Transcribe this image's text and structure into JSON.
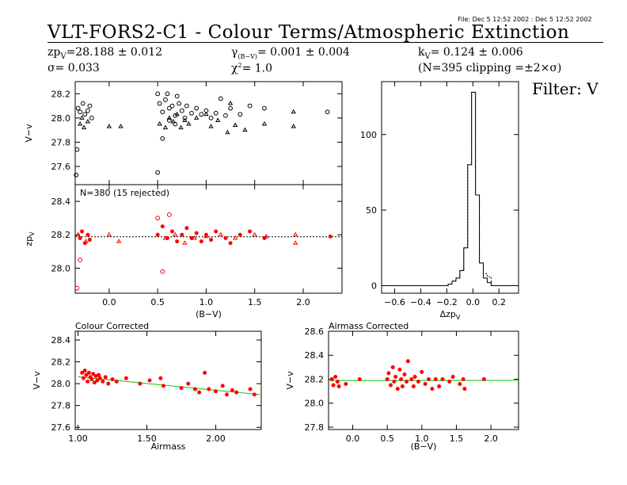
{
  "file_stamp": "File: Dec  5 12:52 2002 : Dec  5 12:52 2002",
  "title": "VLT-FORS2-C1  -  Colour Terms/Atmospheric Extinction",
  "header": {
    "zp_label": "zp",
    "zp_sub": "V",
    "zp_value": "=28.188 ± 0.012",
    "sigma": "σ= 0.033",
    "gamma_sym": "γ",
    "gamma_sub": "(B−V)",
    "gamma_value": "= 0.001 ± 0.004",
    "chi_sym": "χ",
    "chi_sup": "2",
    "chi_value": "=  1.0",
    "k_sym": "k",
    "k_sub": "V",
    "k_value": "= 0.124 ± 0.006",
    "clipping": "(N=395 clipping =±2×σ)"
  },
  "filter_label": "Filter: V",
  "colors": {
    "axis": "#000000",
    "points": "#ff0000",
    "fit": "#00cc00",
    "dotted": "#000000"
  },
  "chart_data": [
    {
      "id": "top-left",
      "type": "scatter",
      "title": "",
      "xlabel": "",
      "ylabel": "V−v",
      "xlim": [
        -0.35,
        2.4
      ],
      "ylim": [
        27.45,
        28.3
      ],
      "yticks": [
        27.6,
        27.8,
        28.0,
        28.2
      ],
      "yticklabels": [
        "27.6",
        "27.8",
        "28.0",
        "28.2"
      ],
      "series": [
        {
          "marker": "circle",
          "color": "#000000",
          "points": [
            [
              -0.32,
              28.08
            ],
            [
              -0.3,
              28.05
            ],
            [
              -0.27,
              28.12
            ],
            [
              -0.25,
              28.03
            ],
            [
              -0.22,
              28.06
            ],
            [
              -0.2,
              28.1
            ],
            [
              -0.18,
              28.0
            ],
            [
              -0.33,
              27.74
            ],
            [
              -0.34,
              27.53
            ],
            [
              0.5,
              28.2
            ],
            [
              0.52,
              28.12
            ],
            [
              0.55,
              28.05
            ],
            [
              0.58,
              28.15
            ],
            [
              0.6,
              28.2
            ],
            [
              0.62,
              28.08
            ],
            [
              0.65,
              28.1
            ],
            [
              0.68,
              28.02
            ],
            [
              0.7,
              28.18
            ],
            [
              0.72,
              28.12
            ],
            [
              0.75,
              28.06
            ],
            [
              0.78,
              28.0
            ],
            [
              0.8,
              28.1
            ],
            [
              0.85,
              28.04
            ],
            [
              0.9,
              28.08
            ],
            [
              0.95,
              28.03
            ],
            [
              1.0,
              28.06
            ],
            [
              1.05,
              28.0
            ],
            [
              1.1,
              28.04
            ],
            [
              1.15,
              28.16
            ],
            [
              1.2,
              28.02
            ],
            [
              1.25,
              28.08
            ],
            [
              1.35,
              28.03
            ],
            [
              1.45,
              28.1
            ],
            [
              1.6,
              28.08
            ],
            [
              2.25,
              28.05
            ],
            [
              0.55,
              27.83
            ],
            [
              0.5,
              27.55
            ],
            [
              0.62,
              27.98
            ],
            [
              0.68,
              27.95
            ]
          ]
        },
        {
          "marker": "triangle",
          "color": "#000000",
          "points": [
            [
              -0.3,
              27.95
            ],
            [
              -0.26,
              27.92
            ],
            [
              -0.22,
              27.97
            ],
            [
              -0.28,
              28.0
            ],
            [
              0.0,
              27.93
            ],
            [
              0.12,
              27.93
            ],
            [
              0.52,
              27.95
            ],
            [
              0.58,
              27.92
            ],
            [
              0.62,
              28.0
            ],
            [
              0.66,
              27.97
            ],
            [
              0.7,
              28.03
            ],
            [
              0.74,
              27.92
            ],
            [
              0.78,
              27.98
            ],
            [
              0.82,
              27.95
            ],
            [
              0.9,
              28.0
            ],
            [
              1.0,
              28.03
            ],
            [
              1.05,
              27.93
            ],
            [
              1.12,
              27.98
            ],
            [
              1.22,
              27.88
            ],
            [
              1.3,
              27.94
            ],
            [
              1.4,
              27.9
            ],
            [
              1.6,
              27.95
            ],
            [
              1.9,
              27.93
            ],
            [
              1.9,
              28.05
            ],
            [
              1.25,
              28.12
            ]
          ]
        }
      ]
    },
    {
      "id": "bottom-left",
      "type": "scatter",
      "title": "",
      "annotation": "N=380 (15 rejected)",
      "xlabel": "(B−V)",
      "ylabel": "zp",
      "ylabel_sub": "V",
      "xlim": [
        -0.35,
        2.4
      ],
      "ylim": [
        27.85,
        28.5
      ],
      "xticks": [
        0.0,
        0.5,
        1.0,
        1.5,
        2.0
      ],
      "xticklabels": [
        "0.0",
        "0.5",
        "1.0",
        "1.5",
        "2.0"
      ],
      "yticks": [
        28.0,
        28.2,
        28.4
      ],
      "yticklabels": [
        "28.0",
        "28.2",
        "28.4"
      ],
      "reference_line": 28.188,
      "series": [
        {
          "marker": "circle",
          "color": "#ff0000",
          "points": [
            [
              -0.3,
              28.18
            ],
            [
              -0.28,
              28.22
            ],
            [
              -0.25,
              28.15
            ],
            [
              -0.22,
              28.2
            ],
            [
              -0.2,
              28.17
            ],
            [
              -0.3,
              28.05
            ],
            [
              -0.33,
              27.88
            ],
            [
              0.5,
              28.2
            ],
            [
              0.55,
              28.25
            ],
            [
              0.6,
              28.18
            ],
            [
              0.65,
              28.22
            ],
            [
              0.7,
              28.16
            ],
            [
              0.75,
              28.2
            ],
            [
              0.8,
              28.24
            ],
            [
              0.85,
              28.18
            ],
            [
              0.9,
              28.21
            ],
            [
              0.95,
              28.16
            ],
            [
              1.0,
              28.2
            ],
            [
              1.05,
              28.17
            ],
            [
              1.1,
              28.22
            ],
            [
              1.2,
              28.18
            ],
            [
              1.25,
              28.15
            ],
            [
              1.35,
              28.2
            ],
            [
              1.45,
              28.22
            ],
            [
              1.6,
              28.18
            ],
            [
              2.28,
              28.19
            ],
            [
              0.5,
              28.3
            ],
            [
              0.55,
              27.98
            ],
            [
              0.62,
              28.32
            ]
          ]
        },
        {
          "marker": "triangle",
          "color": "#ff0000",
          "points": [
            [
              -0.32,
              28.2
            ],
            [
              -0.24,
              28.16
            ],
            [
              0.0,
              28.2
            ],
            [
              0.1,
              28.16
            ],
            [
              0.58,
              28.18
            ],
            [
              0.68,
              28.2
            ],
            [
              0.78,
              28.15
            ],
            [
              0.88,
              28.18
            ],
            [
              1.0,
              28.19
            ],
            [
              1.15,
              28.2
            ],
            [
              1.3,
              28.18
            ],
            [
              1.5,
              28.2
            ],
            [
              1.62,
              28.19
            ],
            [
              1.92,
              28.2
            ],
            [
              1.92,
              28.15
            ]
          ]
        }
      ]
    },
    {
      "id": "histogram",
      "type": "bar",
      "title": "",
      "xlabel": "Δzp",
      "xlabel_sub": "V",
      "ylabel": "",
      "xlim": [
        -0.7,
        0.35
      ],
      "ylim": [
        -5,
        135
      ],
      "xticks": [
        -0.6,
        -0.4,
        -0.2,
        0.0,
        0.2
      ],
      "xticklabels": [
        "−0.6",
        "−0.4",
        "−0.2",
        "0.0",
        "0.2"
      ],
      "yticks": [
        0,
        50,
        100
      ],
      "yticklabels": [
        "0",
        "50",
        "100"
      ],
      "bin_edges": [
        -0.22,
        -0.19,
        -0.16,
        -0.13,
        -0.1,
        -0.07,
        -0.04,
        -0.01,
        0.02,
        0.05,
        0.08,
        0.11,
        0.14
      ],
      "counts_selected": [
        0,
        1,
        3,
        5,
        10,
        25,
        80,
        128,
        60,
        15,
        5,
        2
      ],
      "counts_all": [
        0,
        1,
        3,
        5,
        10,
        25,
        80,
        128,
        60,
        15,
        8,
        6
      ]
    },
    {
      "id": "colour-corrected",
      "type": "scatter",
      "title": "Colour Corrected",
      "xlabel": "Airmass",
      "ylabel": "V−v",
      "xlim": [
        0.98,
        2.33
      ],
      "ylim": [
        27.58,
        28.48
      ],
      "xticks": [
        1.0,
        1.5,
        2.0
      ],
      "xticklabels": [
        "1.00",
        "1.50",
        "2.00"
      ],
      "yticks": [
        27.6,
        27.8,
        28.0,
        28.2,
        28.4
      ],
      "yticklabels": [
        "27.6",
        "27.8",
        "28.0",
        "28.2",
        "28.4"
      ],
      "fit_line": [
        [
          1.0,
          28.064
        ],
        [
          2.32,
          27.9
        ]
      ],
      "points": [
        [
          1.03,
          28.1
        ],
        [
          1.04,
          28.05
        ],
        [
          1.05,
          28.12
        ],
        [
          1.06,
          28.08
        ],
        [
          1.07,
          28.02
        ],
        [
          1.08,
          28.1
        ],
        [
          1.09,
          28.06
        ],
        [
          1.1,
          28.04
        ],
        [
          1.11,
          28.09
        ],
        [
          1.12,
          28.01
        ],
        [
          1.13,
          28.07
        ],
        [
          1.14,
          28.03
        ],
        [
          1.15,
          28.08
        ],
        [
          1.16,
          28.05
        ],
        [
          1.18,
          28.02
        ],
        [
          1.2,
          28.06
        ],
        [
          1.22,
          28.0
        ],
        [
          1.25,
          28.04
        ],
        [
          1.28,
          28.02
        ],
        [
          1.35,
          28.05
        ],
        [
          1.45,
          28.0
        ],
        [
          1.52,
          28.03
        ],
        [
          1.6,
          28.05
        ],
        [
          1.62,
          27.98
        ],
        [
          1.75,
          27.96
        ],
        [
          1.8,
          28.0
        ],
        [
          1.85,
          27.95
        ],
        [
          1.88,
          27.92
        ],
        [
          1.92,
          28.1
        ],
        [
          1.95,
          27.95
        ],
        [
          2.0,
          27.93
        ],
        [
          2.05,
          27.98
        ],
        [
          2.08,
          27.9
        ],
        [
          2.12,
          27.94
        ],
        [
          2.15,
          27.92
        ],
        [
          2.25,
          27.95
        ],
        [
          2.28,
          27.9
        ]
      ]
    },
    {
      "id": "airmass-corrected",
      "type": "scatter",
      "title": "Airmass Corrected",
      "xlabel": "(B−V)",
      "ylabel": "V−v",
      "xlim": [
        -0.35,
        2.4
      ],
      "ylim": [
        27.78,
        28.6
      ],
      "xticks": [
        0.0,
        0.5,
        1.0,
        1.5,
        2.0
      ],
      "xticklabels": [
        "0.0",
        "0.5",
        "1.0",
        "1.5",
        "2.0"
      ],
      "yticks": [
        27.8,
        28.0,
        28.2,
        28.4,
        28.6
      ],
      "yticklabels": [
        "27.8",
        "28.0",
        "28.2",
        "28.4",
        "28.6"
      ],
      "fit_line": [
        [
          -0.35,
          28.188
        ],
        [
          2.4,
          28.19
        ]
      ],
      "points": [
        [
          -0.3,
          28.2
        ],
        [
          -0.28,
          28.15
        ],
        [
          -0.25,
          28.22
        ],
        [
          -0.22,
          28.18
        ],
        [
          -0.2,
          28.14
        ],
        [
          -0.1,
          28.16
        ],
        [
          0.1,
          28.2
        ],
        [
          0.5,
          28.2
        ],
        [
          0.52,
          28.25
        ],
        [
          0.55,
          28.15
        ],
        [
          0.58,
          28.3
        ],
        [
          0.6,
          28.18
        ],
        [
          0.62,
          28.22
        ],
        [
          0.65,
          28.12
        ],
        [
          0.68,
          28.28
        ],
        [
          0.7,
          28.2
        ],
        [
          0.72,
          28.14
        ],
        [
          0.75,
          28.24
        ],
        [
          0.78,
          28.18
        ],
        [
          0.8,
          28.35
        ],
        [
          0.85,
          28.2
        ],
        [
          0.88,
          28.14
        ],
        [
          0.9,
          28.22
        ],
        [
          0.95,
          28.18
        ],
        [
          1.0,
          28.26
        ],
        [
          1.05,
          28.16
        ],
        [
          1.1,
          28.2
        ],
        [
          1.15,
          28.12
        ],
        [
          1.2,
          28.2
        ],
        [
          1.25,
          28.14
        ],
        [
          1.3,
          28.2
        ],
        [
          1.4,
          28.18
        ],
        [
          1.45,
          28.22
        ],
        [
          1.55,
          28.16
        ],
        [
          1.6,
          28.2
        ],
        [
          1.62,
          28.12
        ],
        [
          1.9,
          28.2
        ]
      ]
    }
  ]
}
